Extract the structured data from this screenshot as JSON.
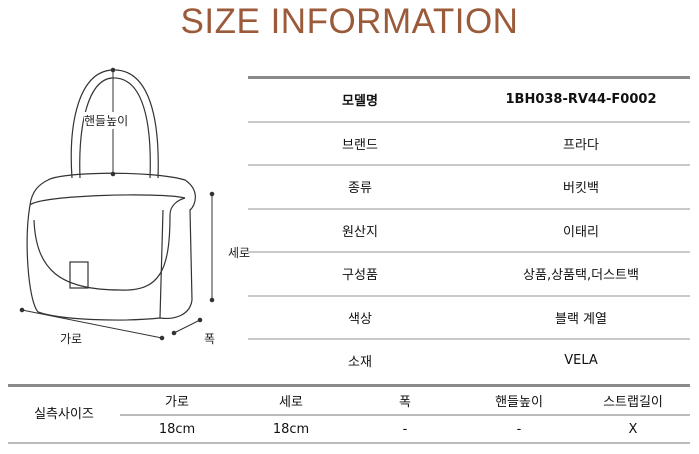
{
  "title": "SIZE INFORMATION",
  "title_color": "#9b5a3a",
  "diagram": {
    "handle_height": "핸들높이",
    "height": "세로",
    "width": "가로",
    "depth": "폭"
  },
  "spec": [
    {
      "label": "모델명",
      "value": "1BH038-RV44-F0002"
    },
    {
      "label": "브랜드",
      "value": "프라다"
    },
    {
      "label": "종류",
      "value": "버킷백"
    },
    {
      "label": "원산지",
      "value": "이태리"
    },
    {
      "label": "구성품",
      "value": "상품,상품택,더스트백"
    },
    {
      "label": "색상",
      "value": "블랙 계열"
    },
    {
      "label": "소재",
      "value": "VELA"
    }
  ],
  "size": {
    "label": "실측사이즈",
    "headers": [
      "가로",
      "세로",
      "폭",
      "핸들높이",
      "스트랩길이"
    ],
    "values": [
      "18cm",
      "18cm",
      "-",
      "-",
      "X"
    ]
  }
}
